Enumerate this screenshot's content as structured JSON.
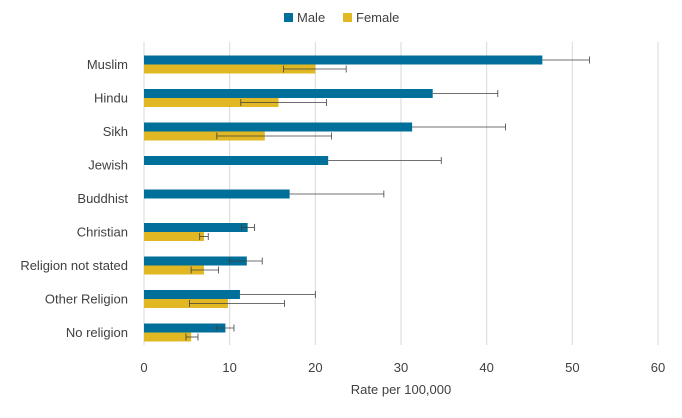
{
  "chart_data": {
    "type": "bar",
    "orientation": "horizontal",
    "title": "",
    "xlabel": "Rate per 100,000",
    "ylabel": "",
    "xlim": [
      0,
      60
    ],
    "x_ticks": [
      0,
      10,
      20,
      30,
      40,
      50,
      60
    ],
    "grid": "vertical",
    "legend_position": "top",
    "categories": [
      "Muslim",
      "Hindu",
      "Sikh",
      "Jewish",
      "Buddhist",
      "Christian",
      "Religion not stated",
      "Other Religion",
      "No religion"
    ],
    "series": [
      {
        "name": "Male",
        "color": "#006f9a",
        "values": [
          46.5,
          33.7,
          31.3,
          21.5,
          17.0,
          12.1,
          12.0,
          11.2,
          9.5
        ],
        "error_low": [
          null,
          null,
          null,
          null,
          null,
          11.4,
          10.0,
          null,
          8.5
        ],
        "error_high": [
          52.0,
          41.3,
          42.2,
          34.7,
          28.0,
          12.9,
          13.8,
          20.0,
          10.5
        ]
      },
      {
        "name": "Female",
        "color": "#e1b823",
        "values": [
          20.0,
          15.7,
          14.1,
          null,
          null,
          7.0,
          7.0,
          9.8,
          5.5
        ],
        "error_low": [
          16.3,
          11.3,
          8.5,
          null,
          null,
          6.5,
          5.5,
          5.3,
          4.9
        ],
        "error_high": [
          23.6,
          21.3,
          21.9,
          null,
          null,
          7.5,
          8.7,
          16.4,
          6.3
        ]
      }
    ]
  }
}
